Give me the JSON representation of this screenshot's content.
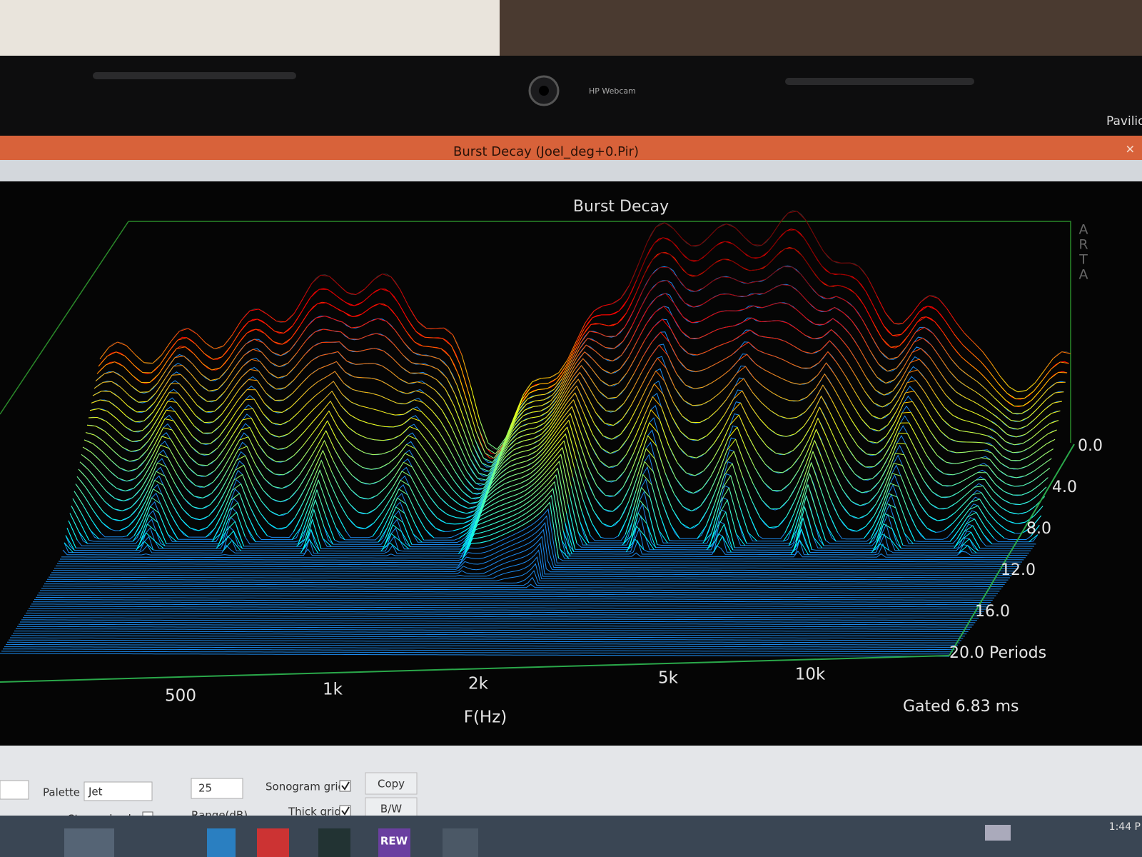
{
  "bezel": {
    "webcam_label": "HP Webcam",
    "brand": "Pavilion"
  },
  "window": {
    "title": "Burst Decay  (Joel_deg+0.Pir)"
  },
  "plot": {
    "title": "Burst Decay",
    "watermark": "ARTA",
    "x_labels": [
      "500",
      "1k",
      "2k",
      "5k",
      "10k"
    ],
    "x_axis_label": "F(Hz)",
    "depth_labels": [
      "0.0",
      "4.0",
      "8.0",
      "12.0",
      "16.0",
      "20.0 Periods"
    ],
    "note": "Gated 6.83 ms"
  },
  "controls": {
    "palette_label": "Palette",
    "palette_value": "Jet",
    "range_value": "25",
    "range_label": "Range(dB)",
    "sonogram_grid": "Sonogram grid",
    "thick_grid": "Thick grid",
    "copy": "Copy",
    "bw": "B/W",
    "stepped_colors": "Stepped colors"
  },
  "taskbar": {
    "time": "1:44 P",
    "app_label": "REW"
  }
}
